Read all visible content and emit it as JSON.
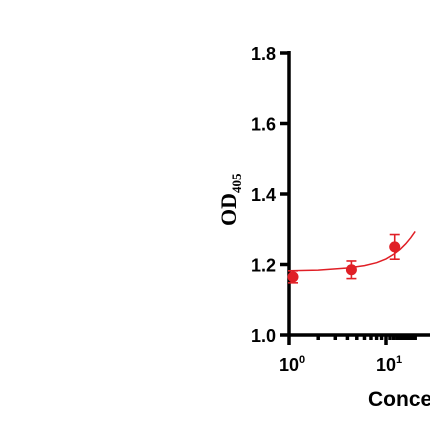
{
  "chart_data": {
    "type": "scatter",
    "x_scale": "log10",
    "xlim": [
      1,
      20
    ],
    "ylim": [
      1.0,
      1.8
    ],
    "y_ticks": [
      "1.0",
      "1.2",
      "1.4",
      "1.6",
      "1.8"
    ],
    "x_ticks": [
      {
        "value": 1,
        "base": "10",
        "exp": "0"
      },
      {
        "value": 10,
        "base": "10",
        "exp": "1"
      }
    ],
    "ylabel": {
      "main": "OD",
      "sub": "405"
    },
    "xlabel": "Conce",
    "series": [
      {
        "color": "#e01f26",
        "points": [
          {
            "x": 1.1,
            "y": 1.165,
            "err": 0.017
          },
          {
            "x": 4.4,
            "y": 1.185,
            "err": 0.025
          },
          {
            "x": 12.3,
            "y": 1.25,
            "err": 0.035
          }
        ],
        "fit": [
          [
            1.0,
            1.182
          ],
          [
            2.0,
            1.184
          ],
          [
            4.0,
            1.19
          ],
          [
            6.0,
            1.197
          ],
          [
            8.0,
            1.205
          ],
          [
            10.0,
            1.216
          ],
          [
            12.0,
            1.229
          ],
          [
            14.0,
            1.243
          ],
          [
            16.0,
            1.259
          ],
          [
            18.0,
            1.276
          ],
          [
            20.0,
            1.294
          ]
        ]
      }
    ]
  }
}
